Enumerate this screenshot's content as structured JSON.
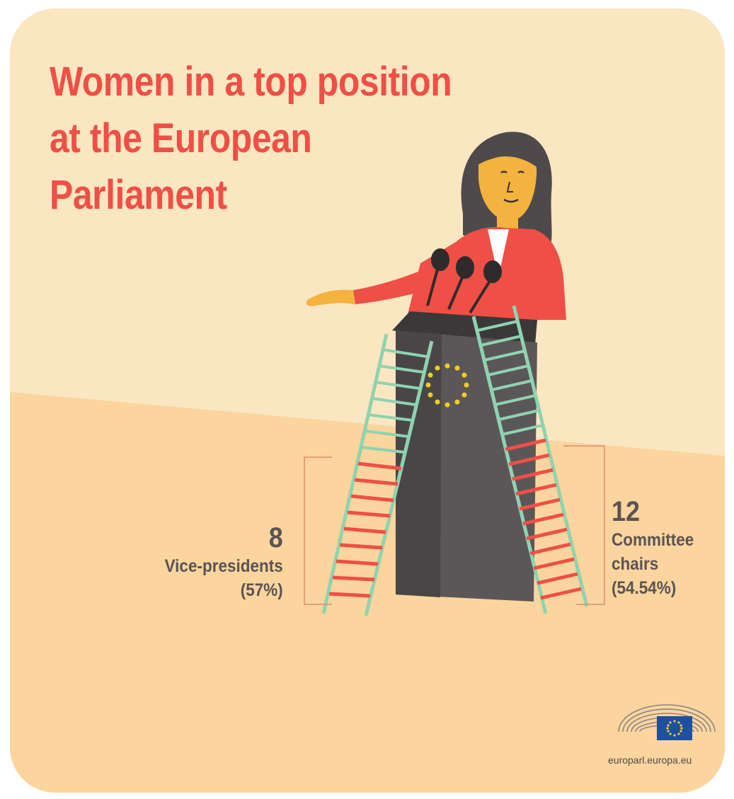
{
  "title": {
    "line1": "Women in a top position",
    "line2": "at the European",
    "line3": "Parliament"
  },
  "vice_presidents": {
    "count": "8",
    "label": "Vice-presidents",
    "share": "(57%)"
  },
  "committee_chairs": {
    "count": "12",
    "label_line1": "Committee",
    "label_line2": "chairs",
    "share": "(54.54%)"
  },
  "footer": {
    "url": "europarl.europa.eu",
    "logo_icon": "parliament-hemicycle-eu-flag-icon"
  },
  "colors": {
    "title": "#ef4f45",
    "text": "#5a5355",
    "wall": "#fbe6c2",
    "floor": "#fbd59d",
    "ladder_green": "#8fd3b0",
    "ladder_red": "#ef4f45",
    "podium": "#5b5758",
    "eu_blue": "#1d4fa3",
    "eu_gold": "#f5cc1f"
  }
}
